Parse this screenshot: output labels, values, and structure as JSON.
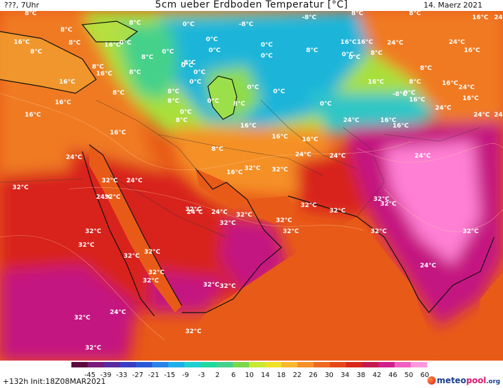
{
  "header": {
    "left_text": "???, 7Uhr",
    "title": "5cm ueber Erdboden Temperatur [°C]",
    "date": "14. Maerz 2021"
  },
  "map": {
    "labels": [
      "8°C",
      "8°C",
      "8°C",
      "0°C",
      "-8°C",
      "-8°C",
      "8°C",
      "16°C",
      "24°C",
      "16°C",
      "8°C",
      "16°C",
      "8°C",
      "8°C",
      "0°C",
      "0°C",
      "0°C",
      "0°C",
      "8°C",
      "16°C",
      "24°C",
      "24°C",
      "8°C",
      "8°C",
      "0°C",
      "-8°C",
      "0°C",
      "0°C",
      "8°C",
      "16°C",
      "8°C",
      "16°C",
      "0°C",
      "0°C",
      "16°C",
      "8°C",
      "16°C",
      "8°C",
      "8°C",
      "0°C",
      "0°C",
      "0°C",
      "0°C",
      "16°C",
      "8°C",
      "16°C",
      "8°C",
      "0°C",
      "8°C",
      "0°C",
      "0°C",
      "-8°C",
      "0°C",
      "24°C",
      "16°C",
      "16°C",
      "16°C",
      "16°C",
      "16°C",
      "8°C",
      "16°C",
      "16°C",
      "16°C",
      "24°C",
      "16°C",
      "24°C",
      "16°C",
      "24°C",
      "24°C",
      "8°C",
      "24°C",
      "24°C",
      "32°C",
      "24°C",
      "16°C",
      "32°C",
      "32°C",
      "24°C",
      "24°C",
      "32°C",
      "24°C",
      "32°C",
      "32°C",
      "24°C",
      "32°C",
      "32°C",
      "32°C",
      "24°C",
      "32°C",
      "32°C",
      "32°C",
      "32°C",
      "32°C",
      "32°C",
      "32°C",
      "32°C",
      "32°C",
      "32°C",
      "32°C",
      "24°C",
      "32°C",
      "32°C",
      "32°C",
      "32°C",
      "24°C",
      "32°C",
      "32°C",
      "32°C"
    ],
    "colors": {
      "sea": "#e85a18",
      "land_warm": "#f07a22",
      "hot": "#d8231f",
      "very_hot": "#c41680",
      "hottest": "#ff7fd4",
      "cold": "#1fb5d9",
      "cool": "#45d18a",
      "mild": "#a8e03a",
      "coast": "#111111"
    }
  },
  "scale": {
    "ticks": [
      "-45",
      "-39",
      "-33",
      "-27",
      "-21",
      "-15",
      "-9",
      "-3",
      "2",
      "6",
      "10",
      "14",
      "18",
      "22",
      "26",
      "30",
      "34",
      "38",
      "42",
      "46",
      "50",
      "60"
    ],
    "colors": [
      "#5b0a3d",
      "#7a1a7a",
      "#5a2aa0",
      "#3d3dc4",
      "#2a5ad8",
      "#2a82e8",
      "#1fb0e8",
      "#1fd0d0",
      "#1fd8a0",
      "#45d18a",
      "#7ad84a",
      "#c8e832",
      "#f0e028",
      "#f8b830",
      "#f59028",
      "#ee6a20",
      "#e54818",
      "#d8281a",
      "#c41a50",
      "#d0208a",
      "#f060c0",
      "#ff98dc"
    ]
  },
  "footer": {
    "run_info": "+132h Init:18Z08MAR2021",
    "logo_main": "meteo",
    "logo_accent": "pool",
    "logo_tld": ".org"
  }
}
